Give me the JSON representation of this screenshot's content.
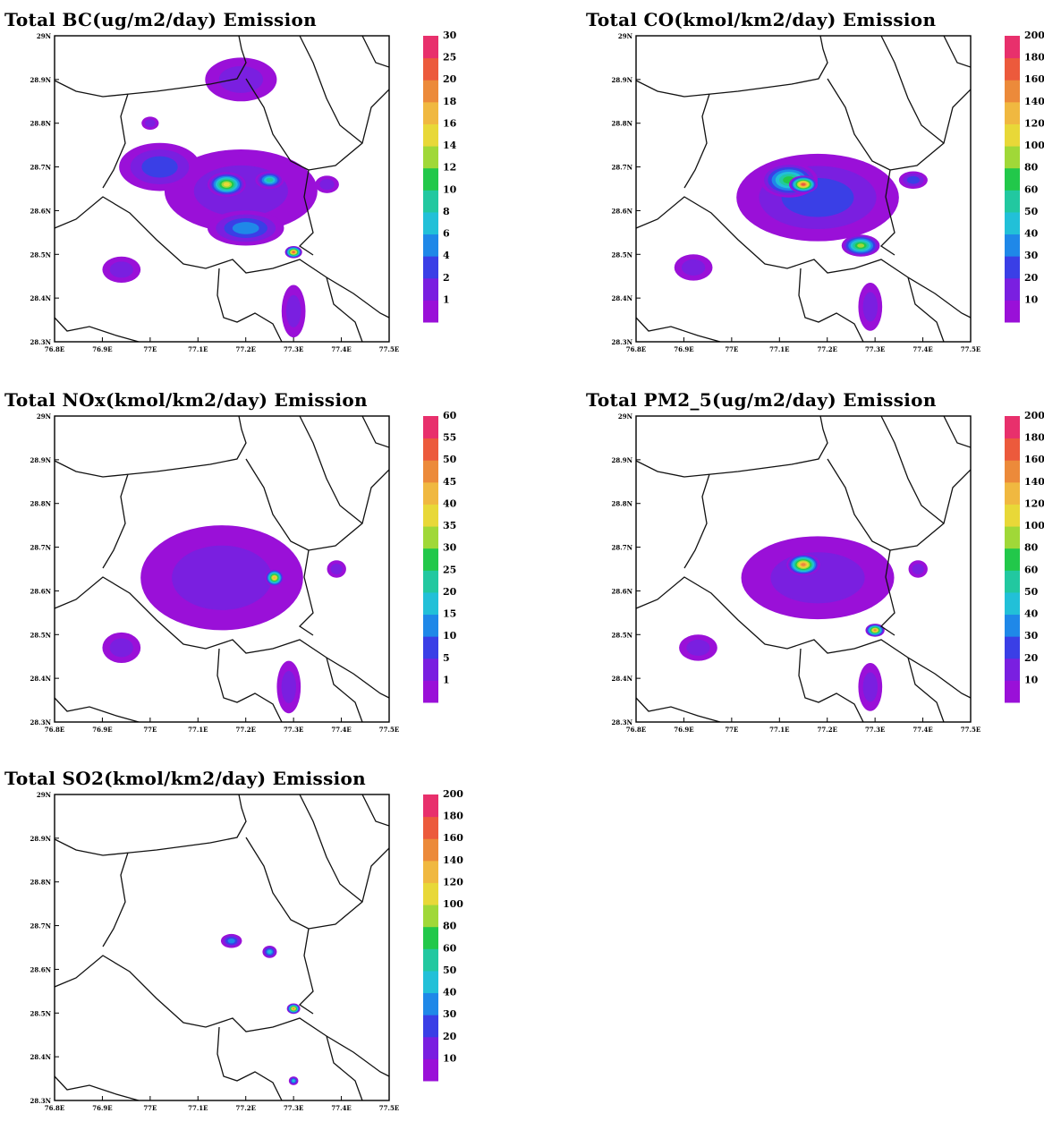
{
  "axes": {
    "lat_ticks": [
      "28.3N",
      "28.4N",
      "28.5N",
      "28.6N",
      "28.7N",
      "28.8N",
      "28.9N",
      "29N"
    ],
    "lon_ticks": [
      "76.8E",
      "76.9E",
      "77E",
      "77.1E",
      "77.2E",
      "77.3E",
      "77.4E",
      "77.5E"
    ]
  },
  "palette": [
    "#9a10d8",
    "#7a1fe0",
    "#3a3fe6",
    "#1f88e8",
    "#22c0d8",
    "#22c8a0",
    "#22c84a",
    "#a0d838",
    "#e8d838",
    "#f0b840",
    "#ec8a3a",
    "#ec5a3c",
    "#e8306c"
  ],
  "panels": [
    {
      "key": "bc",
      "title": "Total BC(ug/m2/day) Emission",
      "legend": [
        "1",
        "2",
        "4",
        "6",
        "8",
        "10",
        "12",
        "14",
        "16",
        "18",
        "20",
        "25",
        "30"
      ],
      "blobs": [
        {
          "lon": 77.19,
          "lat": 28.9,
          "rx": 0.075,
          "ry": 0.05,
          "level": 1
        },
        {
          "lon": 77.19,
          "lat": 28.645,
          "rx": 0.16,
          "ry": 0.095,
          "level": 1
        },
        {
          "lon": 77.02,
          "lat": 28.7,
          "rx": 0.085,
          "ry": 0.055,
          "level": 2
        },
        {
          "lon": 77.16,
          "lat": 28.66,
          "rx": 0.04,
          "ry": 0.028,
          "level": 8
        },
        {
          "lon": 77.25,
          "lat": 28.67,
          "rx": 0.03,
          "ry": 0.02,
          "level": 5
        },
        {
          "lon": 77.3,
          "lat": 28.505,
          "rx": 0.018,
          "ry": 0.014,
          "level": 11
        },
        {
          "lon": 77.2,
          "lat": 28.56,
          "rx": 0.08,
          "ry": 0.04,
          "level": 3
        },
        {
          "lon": 76.94,
          "lat": 28.465,
          "rx": 0.04,
          "ry": 0.03,
          "level": 1
        },
        {
          "lon": 77.3,
          "lat": 28.37,
          "rx": 0.025,
          "ry": 0.06,
          "level": 1
        },
        {
          "lon": 77.37,
          "lat": 28.66,
          "rx": 0.025,
          "ry": 0.02,
          "level": 1
        },
        {
          "lon": 77.0,
          "lat": 28.8,
          "rx": 0.018,
          "ry": 0.015,
          "level": 1
        }
      ]
    },
    {
      "key": "co",
      "title": "Total CO(kmol/km2/day) Emission",
      "legend": [
        "10",
        "20",
        "30",
        "40",
        "50",
        "60",
        "80",
        "100",
        "120",
        "140",
        "160",
        "180",
        "200"
      ],
      "blobs": [
        {
          "lon": 77.18,
          "lat": 28.63,
          "rx": 0.17,
          "ry": 0.1,
          "level": 2
        },
        {
          "lon": 77.12,
          "lat": 28.67,
          "rx": 0.06,
          "ry": 0.04,
          "level": 6
        },
        {
          "lon": 77.15,
          "lat": 28.66,
          "rx": 0.03,
          "ry": 0.02,
          "level": 11
        },
        {
          "lon": 77.27,
          "lat": 28.52,
          "rx": 0.04,
          "ry": 0.025,
          "level": 7
        },
        {
          "lon": 76.92,
          "lat": 28.47,
          "rx": 0.04,
          "ry": 0.03,
          "level": 1
        },
        {
          "lon": 77.29,
          "lat": 28.38,
          "rx": 0.025,
          "ry": 0.055,
          "level": 1
        },
        {
          "lon": 77.38,
          "lat": 28.67,
          "rx": 0.03,
          "ry": 0.02,
          "level": 2
        }
      ]
    },
    {
      "key": "nox",
      "title": "Total NOx(kmol/km2/day) Emission",
      "legend": [
        "1",
        "5",
        "10",
        "15",
        "20",
        "25",
        "30",
        "35",
        "40",
        "45",
        "50",
        "55",
        "60"
      ],
      "blobs": [
        {
          "lon": 77.15,
          "lat": 28.63,
          "rx": 0.17,
          "ry": 0.12,
          "level": 1
        },
        {
          "lon": 77.26,
          "lat": 28.63,
          "rx": 0.02,
          "ry": 0.02,
          "level": 9
        },
        {
          "lon": 76.94,
          "lat": 28.47,
          "rx": 0.04,
          "ry": 0.035,
          "level": 1
        },
        {
          "lon": 77.29,
          "lat": 28.38,
          "rx": 0.025,
          "ry": 0.06,
          "level": 1
        },
        {
          "lon": 77.39,
          "lat": 28.65,
          "rx": 0.02,
          "ry": 0.02,
          "level": 1
        }
      ]
    },
    {
      "key": "pm25",
      "title": "Total PM2_5(ug/m2/day) Emission",
      "legend": [
        "10",
        "20",
        "30",
        "40",
        "50",
        "60",
        "80",
        "100",
        "120",
        "140",
        "160",
        "180",
        "200"
      ],
      "blobs": [
        {
          "lon": 77.18,
          "lat": 28.63,
          "rx": 0.16,
          "ry": 0.095,
          "level": 1
        },
        {
          "lon": 77.15,
          "lat": 28.66,
          "rx": 0.035,
          "ry": 0.025,
          "level": 10
        },
        {
          "lon": 77.3,
          "lat": 28.51,
          "rx": 0.02,
          "ry": 0.015,
          "level": 10
        },
        {
          "lon": 76.93,
          "lat": 28.47,
          "rx": 0.04,
          "ry": 0.03,
          "level": 1
        },
        {
          "lon": 77.29,
          "lat": 28.38,
          "rx": 0.025,
          "ry": 0.055,
          "level": 1
        },
        {
          "lon": 77.39,
          "lat": 28.65,
          "rx": 0.02,
          "ry": 0.02,
          "level": 1
        }
      ]
    },
    {
      "key": "so2",
      "title": "Total SO2(kmol/km2/day) Emission",
      "legend": [
        "10",
        "20",
        "30",
        "40",
        "50",
        "60",
        "80",
        "100",
        "120",
        "140",
        "160",
        "180",
        "200"
      ],
      "blobs": [
        {
          "lon": 77.17,
          "lat": 28.665,
          "rx": 0.022,
          "ry": 0.016,
          "level": 3
        },
        {
          "lon": 77.25,
          "lat": 28.64,
          "rx": 0.015,
          "ry": 0.014,
          "level": 4
        },
        {
          "lon": 77.3,
          "lat": 28.51,
          "rx": 0.014,
          "ry": 0.012,
          "level": 10
        },
        {
          "lon": 77.3,
          "lat": 28.345,
          "rx": 0.01,
          "ry": 0.01,
          "level": 4
        }
      ]
    }
  ]
}
